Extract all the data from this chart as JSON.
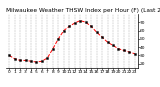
{
  "title": "Milwaukee Weather THSW Index per Hour (F) (Last 24 Hours)",
  "hours": [
    0,
    1,
    2,
    3,
    4,
    5,
    6,
    7,
    8,
    9,
    10,
    11,
    12,
    13,
    14,
    15,
    16,
    17,
    18,
    19,
    20,
    21,
    22,
    23
  ],
  "values": [
    30,
    26,
    24,
    24,
    23,
    22,
    23,
    27,
    38,
    50,
    60,
    65,
    69,
    72,
    70,
    65,
    58,
    52,
    46,
    42,
    38,
    36,
    34,
    32
  ],
  "line_color": "#ff0000",
  "marker_color": "#000000",
  "bg_color": "#ffffff",
  "grid_color": "#999999",
  "title_color": "#000000",
  "ylim": [
    15,
    80
  ],
  "ytick_positions": [
    20,
    30,
    40,
    50,
    60,
    70
  ],
  "ytick_labels": [
    "20",
    "30",
    "40",
    "50",
    "60",
    "70"
  ],
  "title_fontsize": 4.2,
  "tick_fontsize": 3.2,
  "linewidth": 0.7,
  "markersize": 1.4,
  "grid_linewidth": 0.35
}
